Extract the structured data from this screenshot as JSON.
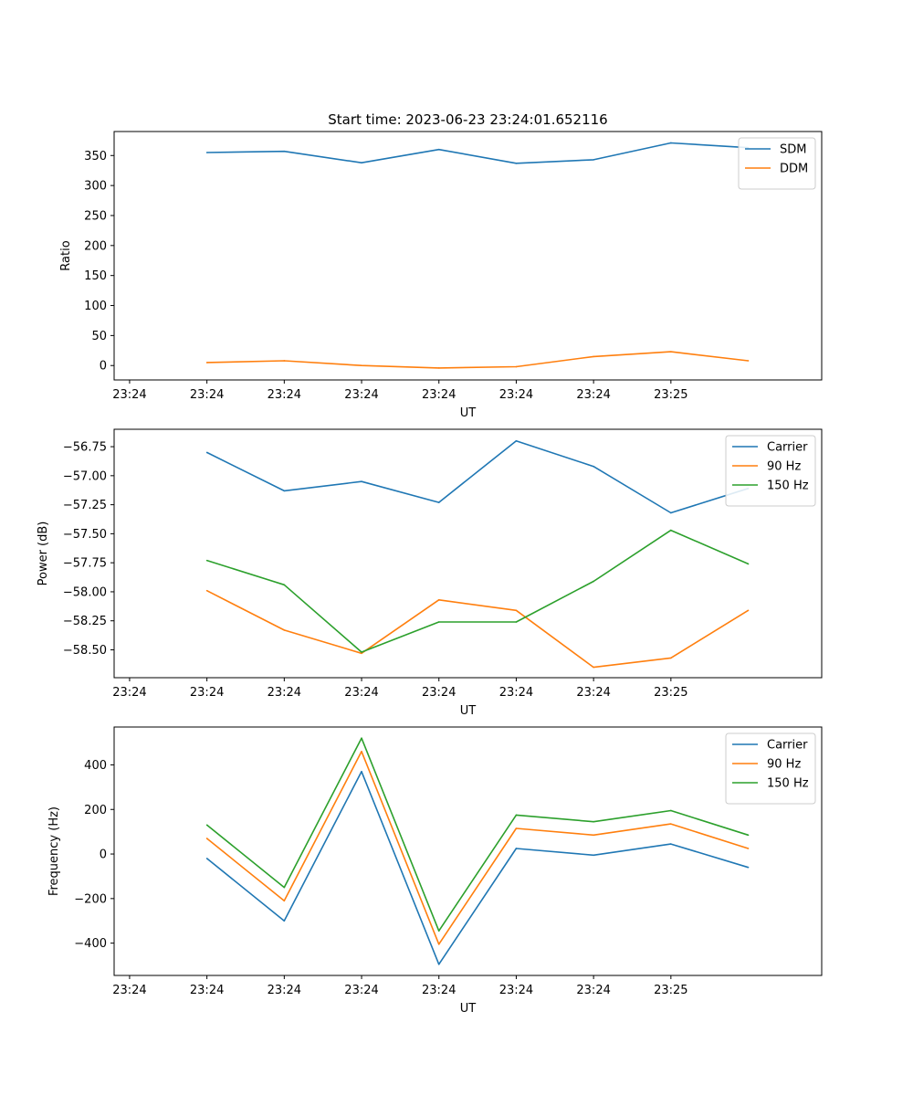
{
  "figure": {
    "title": "Start time: 2023-06-23 23:24:01.652116"
  },
  "colors": {
    "blue": "#1f77b4",
    "orange": "#ff7f0e",
    "green": "#2ca02c"
  },
  "chart_data": [
    {
      "type": "line",
      "title": "Start time: 2023-06-23 23:24:01.652116",
      "xlabel": "UT",
      "ylabel": "Ratio",
      "x_tick_labels": [
        "23:24",
        "23:24",
        "23:24",
        "23:24",
        "23:24",
        "23:24",
        "23:24"
      ],
      "x_tick_end_label": "23:25",
      "x": [
        1,
        2,
        3,
        4,
        5,
        6,
        7,
        8
      ],
      "xlim": [
        -0.2,
        8.95
      ],
      "ylim": [
        -24,
        390
      ],
      "yticks": [
        0,
        50,
        100,
        150,
        200,
        250,
        300,
        350
      ],
      "legend_position": "upper right",
      "grid": false,
      "series": [
        {
          "name": "SDM",
          "color": "#1f77b4",
          "values": [
            355,
            357,
            338,
            360,
            337,
            343,
            371,
            363
          ]
        },
        {
          "name": "DDM",
          "color": "#ff7f0e",
          "values": [
            5,
            8,
            0,
            -4,
            -2,
            15,
            23,
            8
          ]
        }
      ]
    },
    {
      "type": "line",
      "title": "",
      "xlabel": "UT",
      "ylabel": "Power (dB)",
      "x_tick_labels": [
        "23:24",
        "23:24",
        "23:24",
        "23:24",
        "23:24",
        "23:24",
        "23:24"
      ],
      "x_tick_end_label": "23:25",
      "x": [
        1,
        2,
        3,
        4,
        5,
        6,
        7,
        8
      ],
      "xlim": [
        -0.2,
        8.95
      ],
      "ylim": [
        -58.74,
        -56.6
      ],
      "yticks": [
        -58.5,
        -58.25,
        -58.0,
        -57.75,
        -57.5,
        -57.25,
        -57.0,
        -56.75
      ],
      "ytick_labels": [
        "−58.50",
        "−58.25",
        "−58.00",
        "−57.75",
        "−57.50",
        "−57.25",
        "−57.00",
        "−56.75"
      ],
      "legend_position": "upper right",
      "grid": false,
      "series": [
        {
          "name": "Carrier",
          "color": "#1f77b4",
          "values": [
            -56.8,
            -57.13,
            -57.05,
            -57.23,
            -56.7,
            -56.92,
            -57.32,
            -57.11
          ]
        },
        {
          "name": "90 Hz",
          "color": "#ff7f0e",
          "values": [
            -57.99,
            -58.33,
            -58.53,
            -58.07,
            -58.16,
            -58.65,
            -58.57,
            -58.16
          ]
        },
        {
          "name": "150 Hz",
          "color": "#2ca02c",
          "values": [
            -57.73,
            -57.94,
            -58.52,
            -58.26,
            -58.26,
            -57.91,
            -57.47,
            -57.76
          ]
        }
      ]
    },
    {
      "type": "line",
      "title": "",
      "xlabel": "UT",
      "ylabel": "Frequency (Hz)",
      "x_tick_labels": [
        "23:24",
        "23:24",
        "23:24",
        "23:24",
        "23:24",
        "23:24",
        "23:24"
      ],
      "x_tick_end_label": "23:25",
      "x": [
        1,
        2,
        3,
        4,
        5,
        6,
        7,
        8
      ],
      "xlim": [
        -0.2,
        8.95
      ],
      "ylim": [
        -545,
        570
      ],
      "yticks": [
        -400,
        -200,
        0,
        200,
        400
      ],
      "ytick_labels": [
        "−400",
        "−200",
        "0",
        "200",
        "400"
      ],
      "legend_position": "upper right",
      "grid": false,
      "series": [
        {
          "name": "Carrier",
          "color": "#1f77b4",
          "values": [
            -20,
            -300,
            370,
            -495,
            25,
            -5,
            45,
            -60
          ]
        },
        {
          "name": "90 Hz",
          "color": "#ff7f0e",
          "values": [
            70,
            -210,
            460,
            -405,
            115,
            85,
            135,
            25
          ]
        },
        {
          "name": "150 Hz",
          "color": "#2ca02c",
          "values": [
            130,
            -150,
            520,
            -345,
            175,
            145,
            195,
            85
          ]
        }
      ]
    }
  ]
}
